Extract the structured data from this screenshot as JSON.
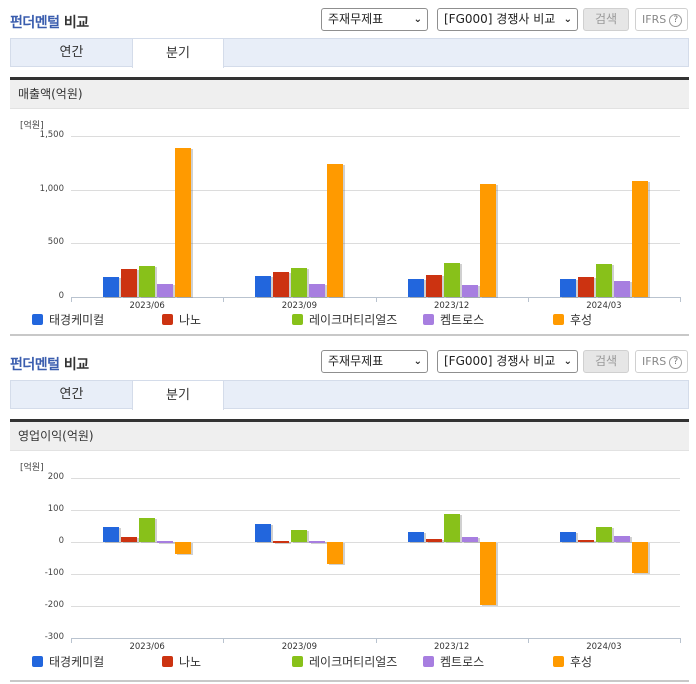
{
  "colors": {
    "series": [
      "#2266dd",
      "#cc3311",
      "#88c11a",
      "#a77ee0",
      "#ff9a00"
    ],
    "title_highlight": "#3a5dae"
  },
  "sections": [
    {
      "title_highlight": "펀더멘털",
      "title_rest": " 비교",
      "select_statement": "주재무제표",
      "select_compare": "[FG000] 경쟁사 비교",
      "search_label": "검색",
      "ifrs_label": "IFRS",
      "help_icon": "?",
      "tabs": [
        {
          "label": "연간"
        },
        {
          "label": "분기"
        }
      ],
      "active_tab": "분기",
      "subtitle": "매출액(억원)",
      "unit": "[억원]"
    },
    {
      "title_highlight": "펀더멘털",
      "title_rest": " 비교",
      "select_statement": "주재무제표",
      "select_compare": "[FG000] 경쟁사 비교",
      "search_label": "검색",
      "ifrs_label": "IFRS",
      "help_icon": "?",
      "tabs": [
        {
          "label": "연간"
        },
        {
          "label": "분기"
        }
      ],
      "active_tab": "분기",
      "subtitle": "영업이익(억원)",
      "unit": "[억원]"
    }
  ],
  "chart_data": [
    {
      "type": "bar",
      "title": "매출액(억원)",
      "ylabel": "[억원]",
      "xlabel": "",
      "categories": [
        "2023/06",
        "2023/09",
        "2023/12",
        "2024/03"
      ],
      "yticks": [
        "1,500",
        "1,000",
        "500",
        "0"
      ],
      "ylim": [
        0,
        1500
      ],
      "grid": true,
      "legend_position": "bottom",
      "series": [
        {
          "name": "태경케미컬",
          "values": [
            189,
            199,
            168,
            168
          ]
        },
        {
          "name": "나노",
          "values": [
            261,
            233,
            208,
            189
          ]
        },
        {
          "name": "레이크머티리얼즈",
          "values": [
            292,
            270,
            317,
            308
          ]
        },
        {
          "name": "켐트로스",
          "values": [
            124,
            124,
            115,
            152
          ]
        },
        {
          "name": "후성",
          "values": [
            1389,
            1240,
            1053,
            1081
          ]
        }
      ]
    },
    {
      "type": "bar",
      "title": "영업이익(억원)",
      "ylabel": "[억원]",
      "xlabel": "",
      "categories": [
        "2023/06",
        "2023/09",
        "2023/12",
        "2024/03"
      ],
      "yticks": [
        "200",
        "100",
        "0",
        "-100",
        "-200",
        "-300"
      ],
      "ylim": [
        -300,
        200
      ],
      "grid": true,
      "legend_position": "bottom",
      "series": [
        {
          "name": "태경케미컬",
          "values": [
            48,
            56,
            31,
            31
          ]
        },
        {
          "name": "나노",
          "values": [
            17,
            3,
            10,
            6
          ]
        },
        {
          "name": "레이크머티리얼즈",
          "values": [
            76,
            37,
            88,
            48
          ]
        },
        {
          "name": "켐트로스",
          "values": [
            2,
            3,
            17,
            19
          ]
        },
        {
          "name": "후성",
          "values": [
            -37,
            -69,
            -196,
            -98
          ]
        }
      ]
    }
  ]
}
